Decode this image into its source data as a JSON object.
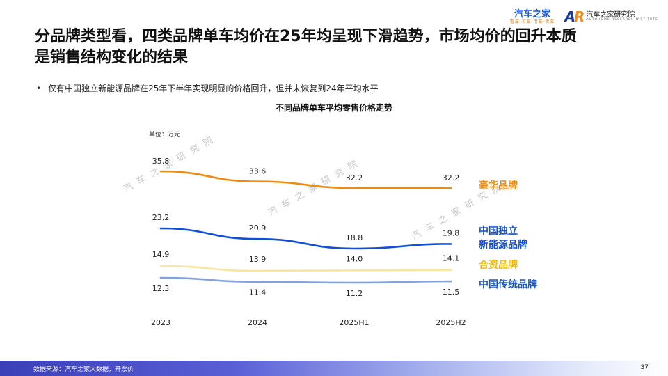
{
  "header": {
    "brand_main": "汽车之家",
    "brand_sub": "看车·买车·用车·卖车",
    "institute_mark": "AR",
    "institute_name": "汽车之家研究院",
    "institute_en": "AUTOHOME RESEARCH INSTITUTE"
  },
  "slide": {
    "title_line1": "分品牌类型看，四类品牌单车均价在25年均呈现下滑趋势，市场均价的回升本质",
    "title_line2": "是销售结构变化的结果",
    "bullet": "仅有中国独立新能源品牌在25年下半年实现明显的价格回升，但并未恢复到24年平均水平"
  },
  "watermark": "汽车之家研究院",
  "footer": {
    "source": "数据来源：汽车之家大数据，开票价",
    "page": "37"
  },
  "chart_data": {
    "type": "line",
    "title": "不同品牌单车平均零售价格走势",
    "unit_label": "单位：万元",
    "categories": [
      "2023",
      "2024",
      "2025H1",
      "2025H2"
    ],
    "ylim": [
      0,
      40
    ],
    "xlabel": "",
    "ylabel": "万元",
    "series": [
      {
        "name": "豪华品牌",
        "legend": [
          "豪华品牌"
        ],
        "color": "#f08a0c",
        "values": [
          35.8,
          33.6,
          32.2,
          32.2
        ]
      },
      {
        "name": "中国独立新能源品牌",
        "legend": [
          "中国独立",
          "新能源品牌"
        ],
        "color": "#1050d8",
        "values": [
          23.2,
          20.9,
          18.8,
          19.8
        ]
      },
      {
        "name": "合资品牌",
        "legend": [
          "合资品牌"
        ],
        "color": "#f3c623",
        "values": [
          14.9,
          13.9,
          14.0,
          14.1
        ]
      },
      {
        "name": "中国传统品牌",
        "legend": [
          "中国传统品牌"
        ],
        "color": "#1a56c4",
        "values": [
          12.3,
          11.4,
          11.2,
          11.5
        ]
      }
    ]
  }
}
